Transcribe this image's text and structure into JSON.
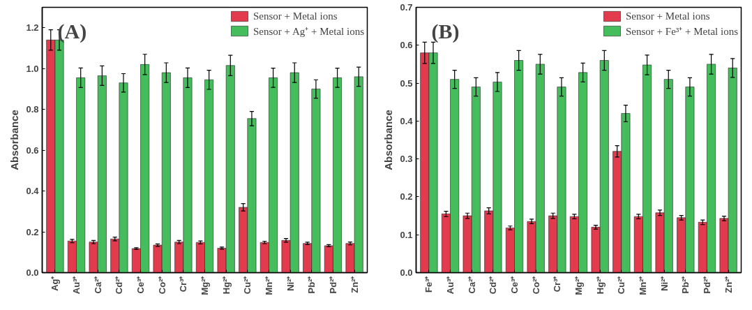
{
  "chart_data": [
    {
      "type": "bar",
      "annotations": [
        "(A)"
      ],
      "ylabel": "Absorbance",
      "categories": [
        "Ag⁺",
        "Au³⁺",
        "Ca²⁺",
        "Cd²⁺",
        "Ce³⁺",
        "Co²⁺",
        "Cr³⁺",
        "Mg²⁺",
        "Hg²⁺",
        "Cu²⁺",
        "Mn²⁺",
        "Ni²⁺",
        "Pb²⁺",
        "Pd²⁺",
        "Zn²⁺"
      ],
      "series": [
        {
          "name": "Sensor + Metal ions",
          "color": "#e23b4e",
          "values": [
            1.14,
            0.155,
            0.15,
            0.165,
            0.118,
            0.135,
            0.15,
            0.148,
            0.12,
            0.32,
            0.148,
            0.158,
            0.143,
            0.132,
            0.143
          ],
          "errors": [
            0.05,
            0.008,
            0.008,
            0.009,
            0.004,
            0.006,
            0.008,
            0.007,
            0.005,
            0.018,
            0.006,
            0.009,
            0.006,
            0.005,
            0.007
          ]
        },
        {
          "name": "Sensor + Ag⁺ + Metal ions",
          "color": "#45bd5d",
          "values": [
            1.14,
            0.955,
            0.965,
            0.93,
            1.02,
            0.98,
            0.955,
            0.945,
            1.015,
            0.755,
            0.955,
            0.98,
            0.9,
            0.955,
            0.96
          ],
          "errors": [
            0.05,
            0.048,
            0.048,
            0.045,
            0.05,
            0.048,
            0.048,
            0.047,
            0.05,
            0.035,
            0.047,
            0.048,
            0.045,
            0.047,
            0.047
          ]
        }
      ],
      "ylim": [
        0,
        1.3
      ],
      "yticks": [
        "0.0",
        0.2,
        0.4,
        0.6,
        0.8,
        "1.0",
        1.2
      ],
      "grid": false,
      "legend": "top right"
    },
    {
      "type": "bar",
      "annotations": [
        "(B)"
      ],
      "ylabel": "Absorbance",
      "categories": [
        "Fe³⁺",
        "Au³⁺",
        "Ca²⁺",
        "Cd²⁺",
        "Ce³⁺",
        "Co²⁺",
        "Cr³⁺",
        "Mg²⁺",
        "Hg²⁺",
        "Cu²⁺",
        "Mn²⁺",
        "Ni²⁺",
        "Pb²⁺",
        "Pd²⁺",
        "Zn²⁺"
      ],
      "series": [
        {
          "name": "Sensor + Metal ions",
          "color": "#e23b4e",
          "values": [
            0.58,
            0.155,
            0.15,
            0.163,
            0.118,
            0.135,
            0.15,
            0.148,
            0.12,
            0.32,
            0.148,
            0.158,
            0.145,
            0.133,
            0.143
          ],
          "errors": [
            0.028,
            0.007,
            0.007,
            0.008,
            0.005,
            0.006,
            0.007,
            0.006,
            0.005,
            0.015,
            0.006,
            0.007,
            0.006,
            0.006,
            0.006
          ]
        },
        {
          "name": "Sensor + Fe³⁺ + Metal ions",
          "color": "#45bd5d",
          "values": [
            0.58,
            0.51,
            0.49,
            0.503,
            0.56,
            0.55,
            0.49,
            0.528,
            0.56,
            0.42,
            0.548,
            0.51,
            0.49,
            0.55,
            0.54
          ],
          "errors": [
            0.028,
            0.024,
            0.024,
            0.025,
            0.026,
            0.026,
            0.024,
            0.025,
            0.026,
            0.022,
            0.026,
            0.024,
            0.024,
            0.026,
            0.025
          ]
        }
      ],
      "ylim": [
        0,
        0.7
      ],
      "yticks": [
        "0.0",
        0.1,
        0.2,
        0.3,
        0.4,
        0.5,
        0.6,
        0.7
      ],
      "grid": false,
      "legend": "top right"
    }
  ]
}
